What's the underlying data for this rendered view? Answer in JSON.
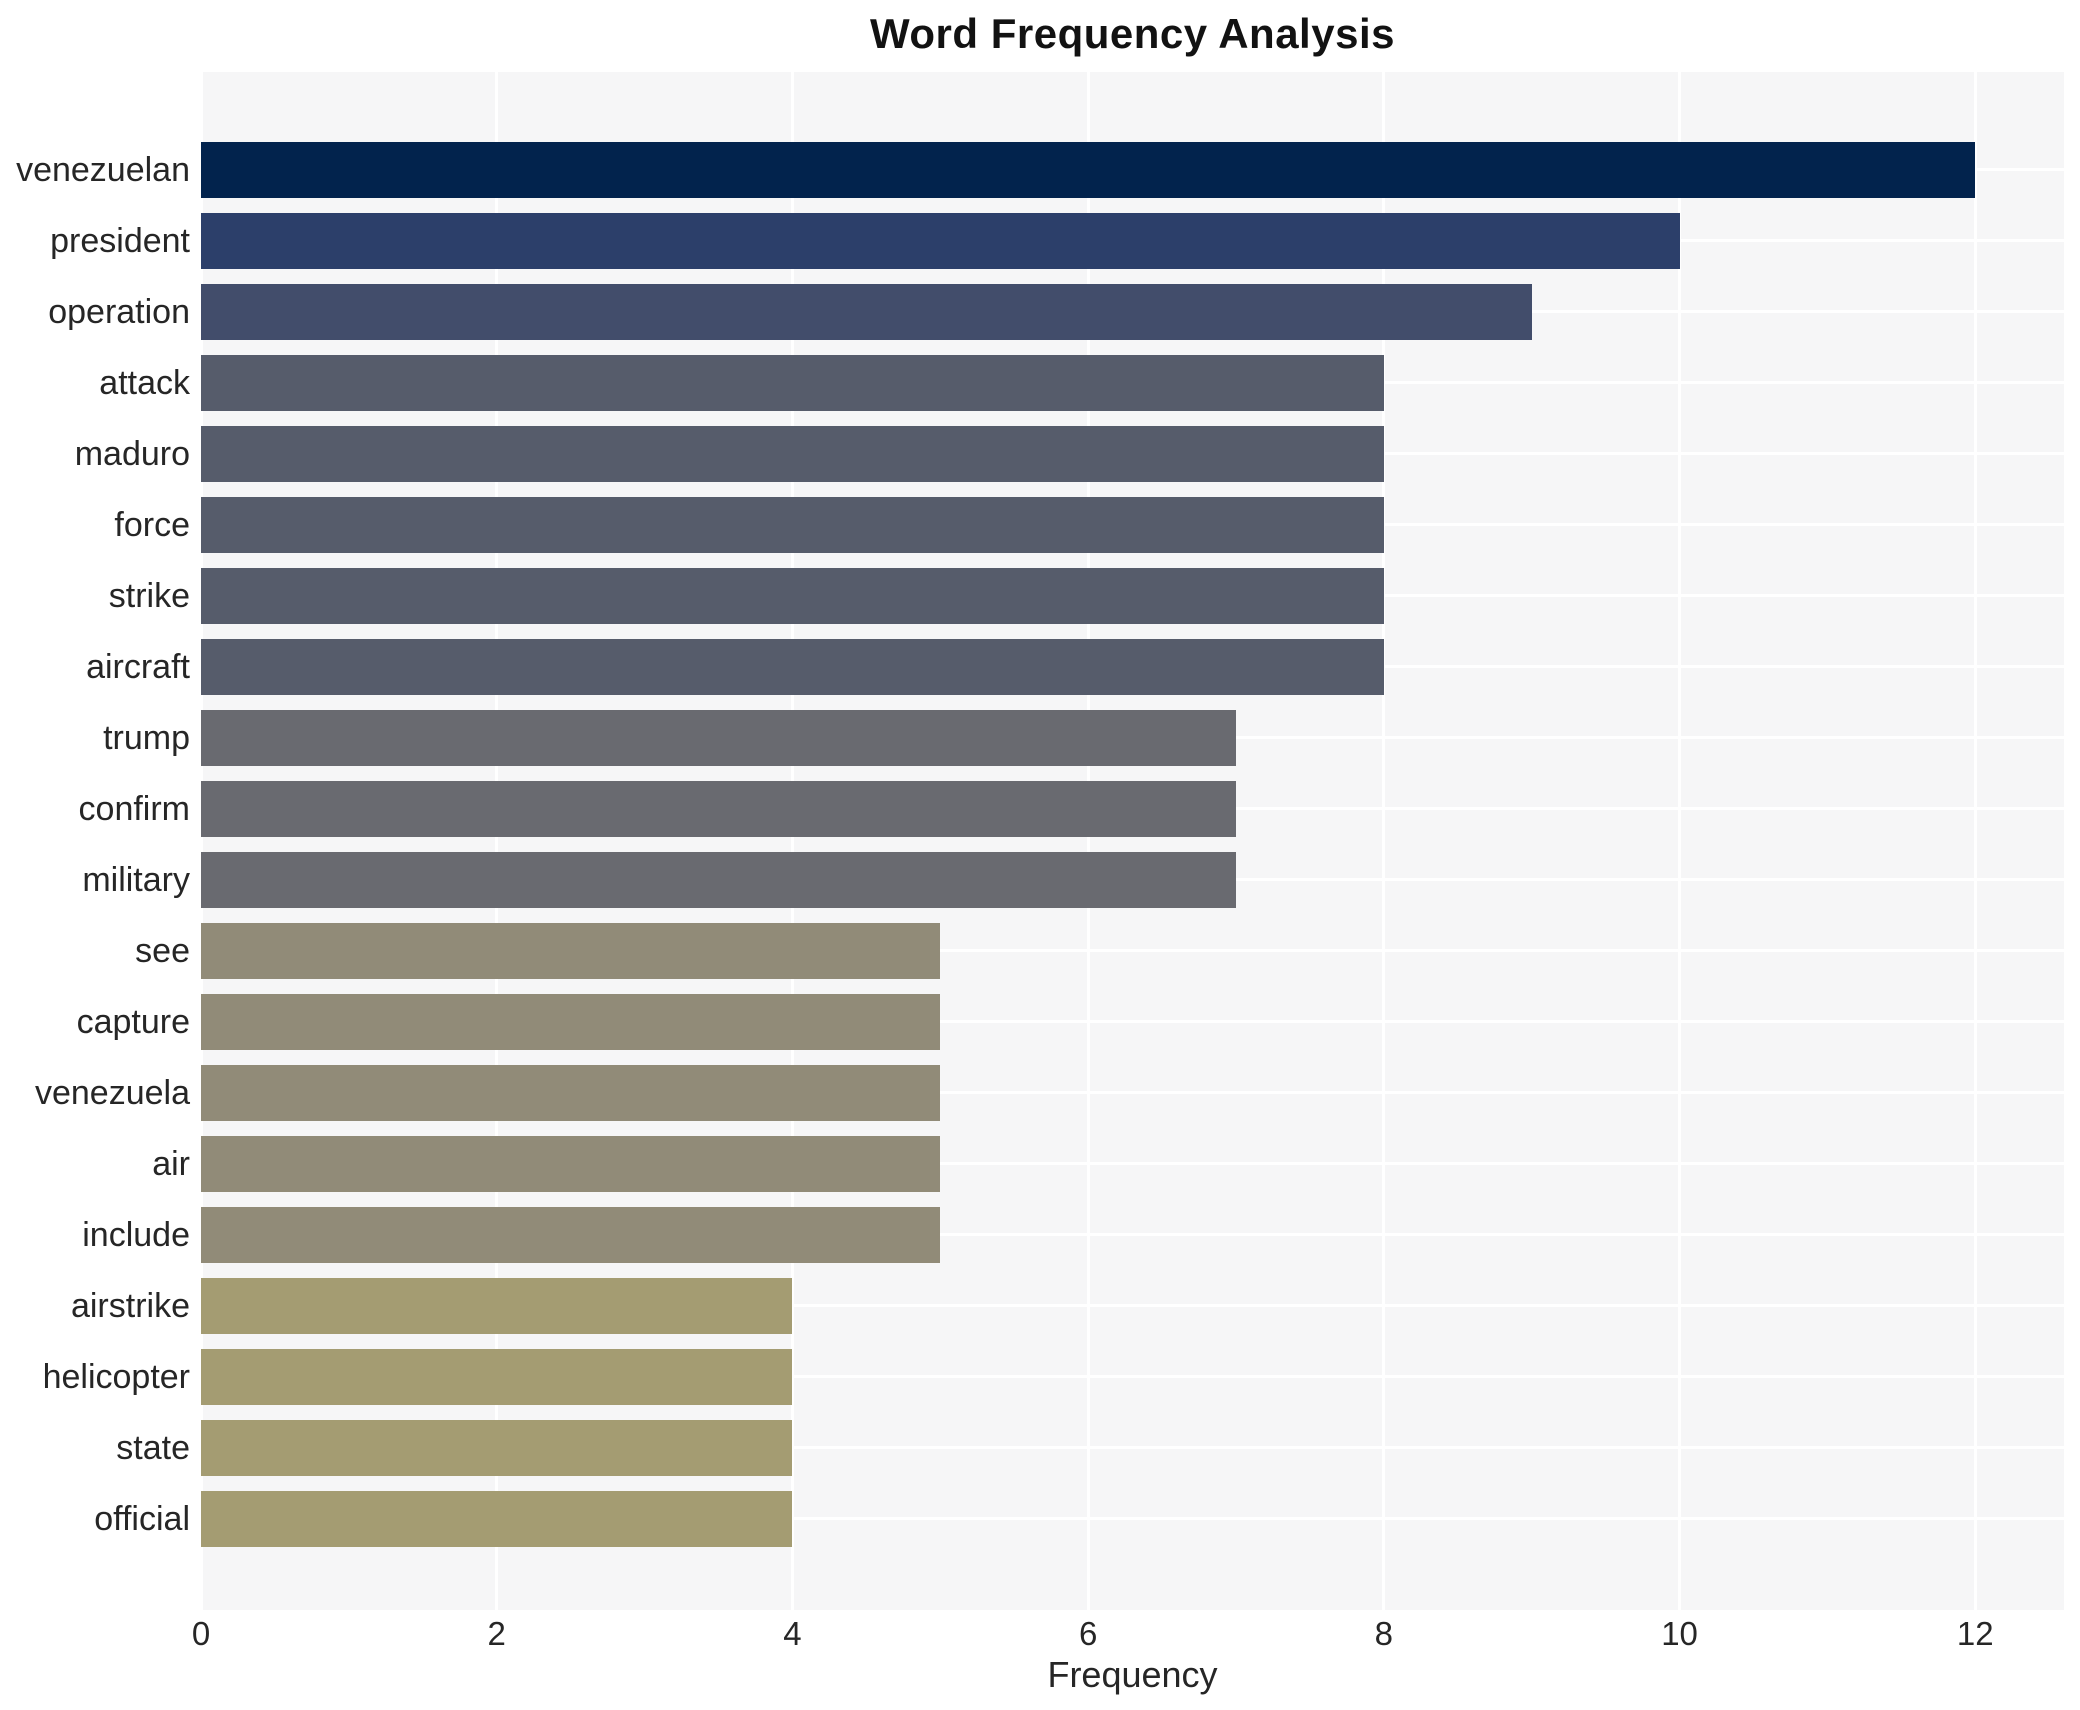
{
  "chart_data": {
    "type": "bar",
    "orientation": "horizontal",
    "title": "Word Frequency Analysis",
    "xlabel": "Frequency",
    "ylabel": "",
    "categories": [
      "venezuelan",
      "president",
      "operation",
      "attack",
      "maduro",
      "force",
      "strike",
      "aircraft",
      "trump",
      "confirm",
      "military",
      "see",
      "capture",
      "venezuela",
      "air",
      "include",
      "airstrike",
      "helicopter",
      "state",
      "official"
    ],
    "values": [
      12,
      10,
      9,
      8,
      8,
      8,
      8,
      8,
      7,
      7,
      7,
      5,
      5,
      5,
      5,
      5,
      4,
      4,
      4,
      4
    ],
    "bar_colors": [
      "#02234d",
      "#2c3f6a",
      "#424d6b",
      "#565c6b",
      "#565c6b",
      "#565c6b",
      "#565c6b",
      "#565c6b",
      "#696a70",
      "#696a70",
      "#696a70",
      "#918b78",
      "#918b78",
      "#918b78",
      "#918b78",
      "#918b78",
      "#a49c72",
      "#a49c72",
      "#a49c72",
      "#a49c72"
    ],
    "xticks": [
      0,
      2,
      4,
      6,
      8,
      10,
      12
    ],
    "xlim": [
      0,
      12.6
    ],
    "grid": true,
    "legend": "none",
    "colors": {
      "plot_bg": "#f6f6f7",
      "grid": "#ffffff",
      "tick_text": "#262626",
      "title_text": "#121212",
      "figure_bg": "#ffffff"
    }
  }
}
